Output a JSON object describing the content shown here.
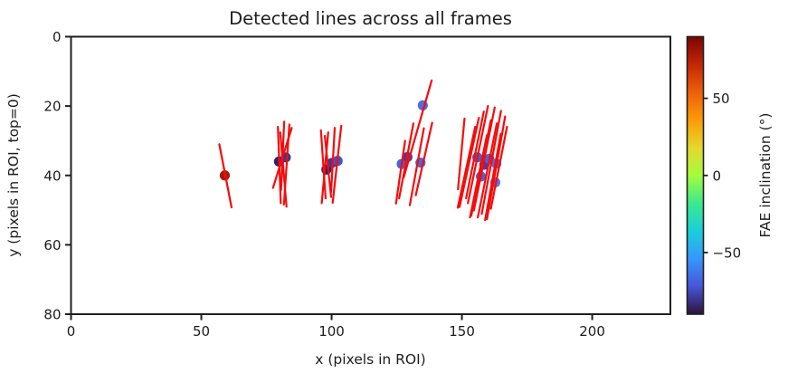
{
  "figure": {
    "background": "#ffffff"
  },
  "chart_data": {
    "type": "scatter",
    "title": "Detected lines across all frames",
    "xlabel": "x (pixels in ROI)",
    "ylabel": "y (pixels in ROI, top=0)",
    "xlim": [
      0,
      230
    ],
    "ylim": [
      0,
      80
    ],
    "y_axis_inverted": true,
    "x_ticks": [
      0,
      50,
      100,
      150,
      200
    ],
    "y_ticks": [
      0,
      20,
      40,
      60,
      80
    ],
    "grid": false,
    "line_color": "#f70b0b",
    "line_width": 2.2,
    "point_radius": 5.6,
    "lines": [
      [
        56.9,
        31.0,
        61.6,
        49.2
      ],
      [
        79.4,
        26.0,
        80.5,
        48.0
      ],
      [
        81.8,
        24.5,
        80.6,
        44.2
      ],
      [
        83.8,
        25.3,
        81.7,
        48.4
      ],
      [
        84.7,
        26.3,
        77.5,
        43.6
      ],
      [
        80.3,
        27.6,
        82.7,
        49.0
      ],
      [
        98.7,
        27.6,
        96.2,
        48.0
      ],
      [
        101.2,
        26.3,
        99.8,
        44.8
      ],
      [
        103.7,
        25.7,
        100.4,
        47.9
      ],
      [
        97.4,
        28.6,
        99.8,
        46.2
      ],
      [
        95.9,
        27.0,
        97.7,
        46.6
      ],
      [
        138.4,
        12.6,
        127.7,
        40.5
      ],
      [
        131.4,
        25.0,
        125.9,
        46.6
      ],
      [
        138.6,
        24.8,
        132.3,
        45.7
      ],
      [
        128.2,
        30.0,
        124.7,
        48.1
      ],
      [
        135.4,
        26.4,
        130.0,
        48.6
      ],
      [
        160.0,
        20.0,
        152.3,
        48.0
      ],
      [
        162.6,
        20.4,
        154.6,
        50.1
      ],
      [
        165.0,
        21.4,
        157.6,
        51.1
      ],
      [
        166.6,
        23.0,
        159.6,
        52.6
      ],
      [
        158.4,
        21.6,
        151.6,
        46.6
      ],
      [
        156.5,
        23.4,
        149.1,
        49.1
      ],
      [
        163.4,
        25.0,
        156.1,
        52.1
      ],
      [
        161.1,
        24.1,
        153.6,
        51.6
      ],
      [
        164.9,
        28.0,
        158.9,
        52.9
      ],
      [
        155.1,
        26.0,
        148.4,
        49.3
      ],
      [
        167.3,
        26.0,
        161.1,
        49.6
      ],
      [
        159.6,
        28.4,
        153.1,
        52.1
      ],
      [
        151.0,
        23.6,
        148.5,
        44.0
      ]
    ],
    "points": [
      {
        "x": 59.0,
        "y": 40.0,
        "color": "#a81a08",
        "inclination_deg": 78
      },
      {
        "x": 79.8,
        "y": 36.0,
        "color": "#2d2171",
        "inclination_deg": -81
      },
      {
        "x": 82.4,
        "y": 34.8,
        "color": "#3a3593",
        "inclination_deg": -75
      },
      {
        "x": 98.0,
        "y": 38.3,
        "color": "#261e63",
        "inclination_deg": -84
      },
      {
        "x": 100.1,
        "y": 36.4,
        "color": "#3b3a9c",
        "inclination_deg": -74
      },
      {
        "x": 102.3,
        "y": 35.8,
        "color": "#4453c5",
        "inclination_deg": -68
      },
      {
        "x": 126.9,
        "y": 36.7,
        "color": "#4565dd",
        "inclination_deg": -63
      },
      {
        "x": 129.1,
        "y": 34.7,
        "color": "#3c41ad",
        "inclination_deg": -72
      },
      {
        "x": 134.1,
        "y": 36.3,
        "color": "#4668de",
        "inclination_deg": -62
      },
      {
        "x": 135.0,
        "y": 19.8,
        "color": "#4a70e0",
        "inclination_deg": -60
      },
      {
        "x": 155.9,
        "y": 34.8,
        "color": "#4360d6",
        "inclination_deg": -64
      },
      {
        "x": 158.6,
        "y": 36.9,
        "color": "#3c41ad",
        "inclination_deg": -72
      },
      {
        "x": 160.5,
        "y": 35.2,
        "color": "#4565dd",
        "inclination_deg": -63
      },
      {
        "x": 163.2,
        "y": 36.6,
        "color": "#4a70e0",
        "inclination_deg": -60
      },
      {
        "x": 157.3,
        "y": 40.3,
        "color": "#4565dd",
        "inclination_deg": -63
      },
      {
        "x": 162.8,
        "y": 42.0,
        "color": "#5179e8",
        "inclination_deg": -57
      }
    ],
    "colorbar": {
      "label": "FAE inclination (°)",
      "ticks": [
        50,
        0,
        -50
      ],
      "range": [
        -90,
        90
      ],
      "colormap": "turbo",
      "stops": [
        {
          "t": 0.0,
          "color": "#30123b"
        },
        {
          "t": 0.1,
          "color": "#4655d8"
        },
        {
          "t": 0.2,
          "color": "#3697fe"
        },
        {
          "t": 0.3,
          "color": "#1acfd9"
        },
        {
          "t": 0.4,
          "color": "#3bea8d"
        },
        {
          "t": 0.5,
          "color": "#a4fc3c"
        },
        {
          "t": 0.6,
          "color": "#e7d72e"
        },
        {
          "t": 0.7,
          "color": "#fb9b06"
        },
        {
          "t": 0.8,
          "color": "#ef5f0a"
        },
        {
          "t": 0.9,
          "color": "#c42604"
        },
        {
          "t": 1.0,
          "color": "#7a0403"
        }
      ]
    }
  }
}
